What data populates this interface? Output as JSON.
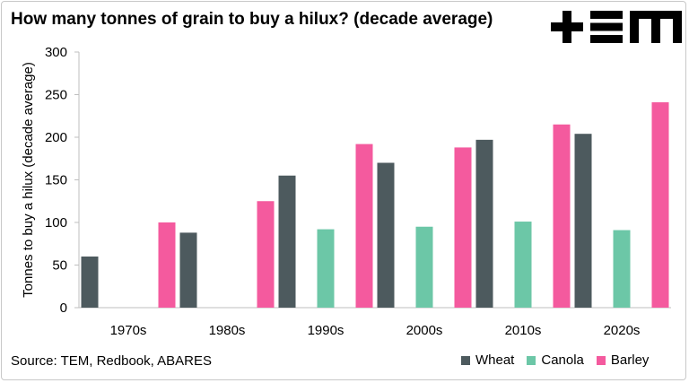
{
  "chart_data": {
    "type": "bar",
    "title": "How many tonnes of grain to buy a hilux? (decade average)",
    "ylabel": "Tonnes to buy a hilux (decade average)",
    "xlabel": "",
    "ylim": [
      0,
      300
    ],
    "yticks": [
      0,
      50,
      100,
      150,
      200,
      250,
      300
    ],
    "grid": false,
    "legend_position": "bottom-right",
    "categories": [
      "1970s",
      "1980s",
      "1990s",
      "2000s",
      "2010s",
      "2020s"
    ],
    "series": [
      {
        "name": "Wheat",
        "color": "#4d5a5e",
        "values": [
          60,
          88,
          155,
          170,
          197,
          204
        ]
      },
      {
        "name": "Canola",
        "color": "#6cc7a7",
        "values": [
          null,
          null,
          92,
          95,
          101,
          91
        ]
      },
      {
        "name": "Barley",
        "color": "#f45a9e",
        "values": [
          100,
          125,
          192,
          188,
          215,
          241
        ]
      }
    ]
  },
  "source": "Source: TEM, Redbook, ABARES",
  "brand": {
    "name": "+EM",
    "color": "#000000"
  }
}
